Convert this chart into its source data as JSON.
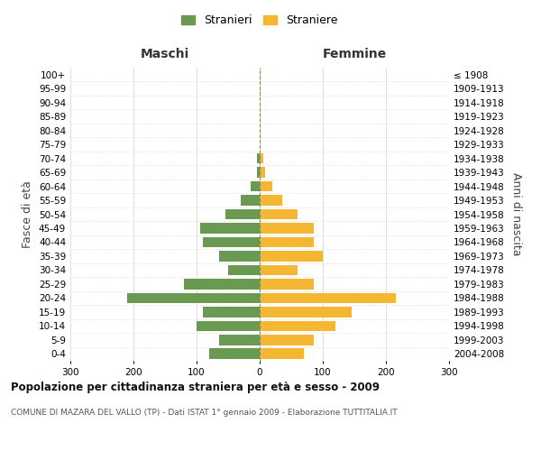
{
  "age_groups": [
    "0-4",
    "5-9",
    "10-14",
    "15-19",
    "20-24",
    "25-29",
    "30-34",
    "35-39",
    "40-44",
    "45-49",
    "50-54",
    "55-59",
    "60-64",
    "65-69",
    "70-74",
    "75-79",
    "80-84",
    "85-89",
    "90-94",
    "95-99",
    "100+"
  ],
  "birth_years": [
    "2004-2008",
    "1999-2003",
    "1994-1998",
    "1989-1993",
    "1984-1988",
    "1979-1983",
    "1974-1978",
    "1969-1973",
    "1964-1968",
    "1959-1963",
    "1954-1958",
    "1949-1953",
    "1944-1948",
    "1939-1943",
    "1934-1938",
    "1929-1933",
    "1924-1928",
    "1919-1923",
    "1914-1918",
    "1909-1913",
    "≤ 1908"
  ],
  "maschi": [
    80,
    65,
    100,
    90,
    210,
    120,
    50,
    65,
    90,
    95,
    55,
    30,
    15,
    5,
    5,
    0,
    0,
    0,
    0,
    0,
    0
  ],
  "femmine": [
    70,
    85,
    120,
    145,
    215,
    85,
    60,
    100,
    85,
    85,
    60,
    35,
    20,
    8,
    5,
    0,
    0,
    0,
    0,
    0,
    0
  ],
  "color_maschi": "#6a9a52",
  "color_femmine": "#f5b731",
  "title": "Popolazione per cittadinanza straniera per età e sesso - 2009",
  "subtitle": "COMUNE DI MAZARA DEL VALLO (TP) - Dati ISTAT 1° gennaio 2009 - Elaborazione TUTTITALIA.IT",
  "xlabel_left": "Maschi",
  "xlabel_right": "Femmine",
  "ylabel_left": "Fasce di età",
  "ylabel_right": "Anni di nascita",
  "legend_maschi": "Stranieri",
  "legend_femmine": "Straniere",
  "xlim": 300,
  "background_color": "#ffffff",
  "grid_color": "#d0d0d0",
  "center_line_color": "#888855",
  "tick_fontsize": 7.5,
  "label_fontsize": 9
}
